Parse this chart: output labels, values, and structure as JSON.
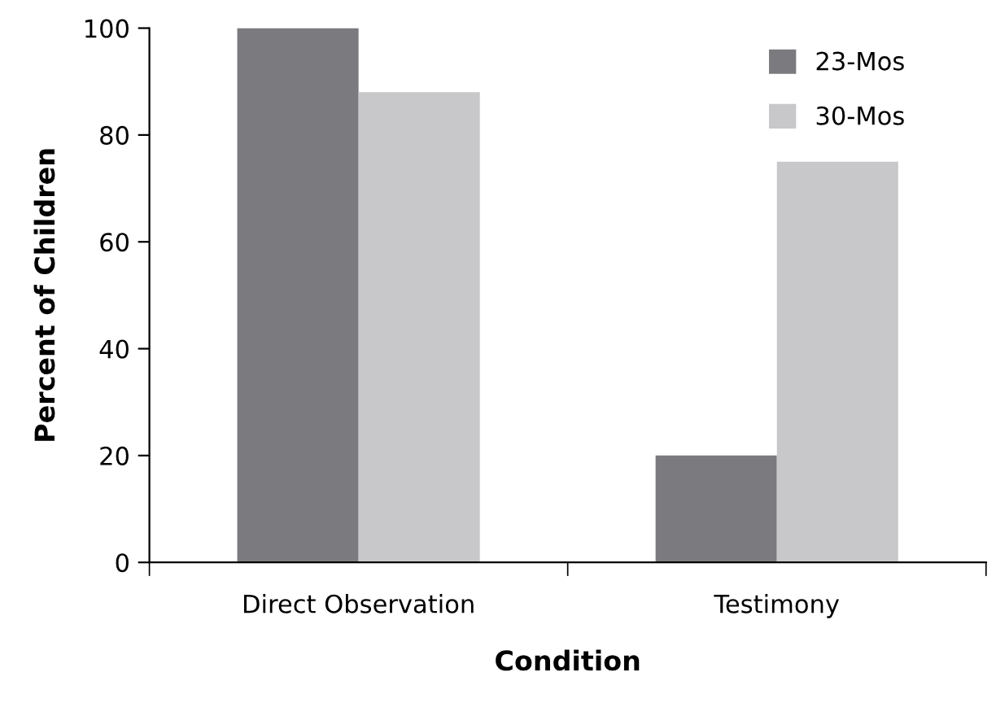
{
  "chart_data": {
    "type": "bar",
    "xlabel": "Condition",
    "ylabel": "Percent of Children",
    "categories": [
      "Direct Observation",
      "Testimony"
    ],
    "series": [
      {
        "name": "23-Mos",
        "color": "#7b7b7f",
        "values": [
          100,
          20
        ]
      },
      {
        "name": "30-Mos",
        "color": "#c8c8ca",
        "values": [
          88,
          75
        ]
      }
    ],
    "ylim": [
      0,
      100
    ],
    "yticks": [
      0,
      20,
      40,
      60,
      80,
      100
    ],
    "grid": false,
    "legend": "top right"
  }
}
